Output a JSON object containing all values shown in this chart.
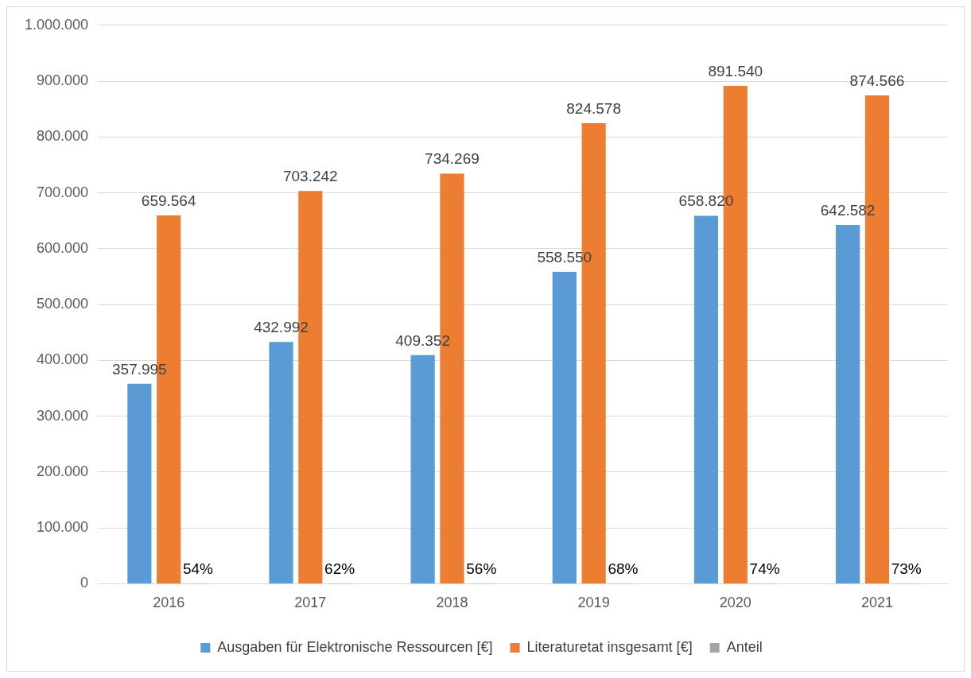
{
  "chart_data": {
    "type": "bar",
    "categories": [
      "2016",
      "2017",
      "2018",
      "2019",
      "2020",
      "2021"
    ],
    "series": [
      {
        "name": "Ausgaben für Elektronische Ressourcen [€]",
        "color": "#5b9bd5",
        "values": [
          357995,
          432992,
          409352,
          558550,
          658820,
          642582
        ],
        "value_labels": [
          "357.995",
          "432.992",
          "409.352",
          "558.550",
          "658.820",
          "642.582"
        ]
      },
      {
        "name": "Literaturetat insgesamt [€]",
        "color": "#ed7d31",
        "values": [
          659564,
          703242,
          734269,
          824578,
          891540,
          874566
        ],
        "value_labels": [
          "659.564",
          "703.242",
          "734.269",
          "824.578",
          "891.540",
          "874.566"
        ]
      },
      {
        "name": "Anteil",
        "color": "#a5a5a5",
        "values": [
          0.54,
          0.62,
          0.56,
          0.68,
          0.74,
          0.73
        ],
        "value_labels": [
          "54%",
          "62%",
          "56%",
          "68%",
          "74%",
          "73%"
        ]
      }
    ],
    "ylim": [
      0,
      1000000
    ],
    "yticks": [
      {
        "value": 0,
        "label": "0"
      },
      {
        "value": 100000,
        "label": "100.000"
      },
      {
        "value": 200000,
        "label": "200.000"
      },
      {
        "value": 300000,
        "label": "300.000"
      },
      {
        "value": 400000,
        "label": "400.000"
      },
      {
        "value": 500000,
        "label": "500.000"
      },
      {
        "value": 600000,
        "label": "600.000"
      },
      {
        "value": 700000,
        "label": "700.000"
      },
      {
        "value": 800000,
        "label": "800.000"
      },
      {
        "value": 900000,
        "label": "900.000"
      },
      {
        "value": 1000000,
        "label": "1.000.000"
      }
    ],
    "grid": "y",
    "legend": "bottom"
  }
}
